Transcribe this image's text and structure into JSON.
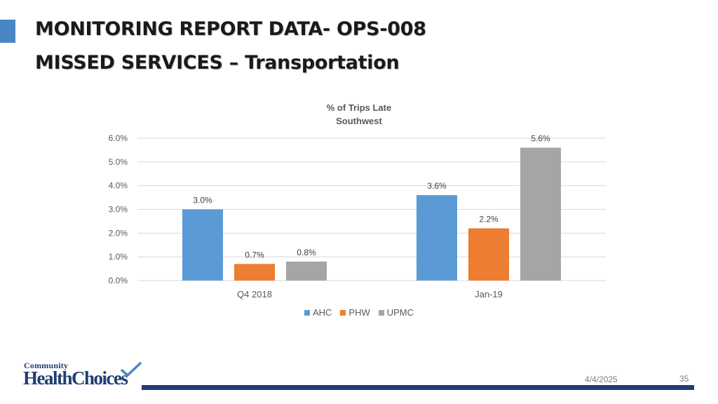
{
  "slide": {
    "title_line1": "MONITORING REPORT DATA- OPS-008",
    "title_line2": "MISSED SERVICES – Transportation",
    "accent_color": "#4a86c5"
  },
  "chart_data": {
    "type": "bar",
    "title": "% of Trips Late",
    "subtitle": "Southwest",
    "categories": [
      "Q4 2018",
      "Jan-19"
    ],
    "series": [
      {
        "name": "AHC",
        "values": [
          3.0,
          3.6
        ],
        "color": "#5b9bd5"
      },
      {
        "name": "PHW",
        "values": [
          0.7,
          2.2
        ],
        "color": "#ed7d31"
      },
      {
        "name": "UPMC",
        "values": [
          0.8,
          5.6
        ],
        "color": "#a5a5a5"
      }
    ],
    "ylim": [
      0,
      6
    ],
    "yticks": [
      "0.0%",
      "1.0%",
      "2.0%",
      "3.0%",
      "4.0%",
      "5.0%",
      "6.0%"
    ],
    "value_format": "percent_1dp",
    "grid": true,
    "legend": "bottom"
  },
  "logo": {
    "line1": "Community",
    "line2": "HealthChoices",
    "color": "#1f3e73"
  },
  "footer": {
    "date": "4/4/2025",
    "page_number": "35",
    "bar_color": "#1f3e73"
  }
}
